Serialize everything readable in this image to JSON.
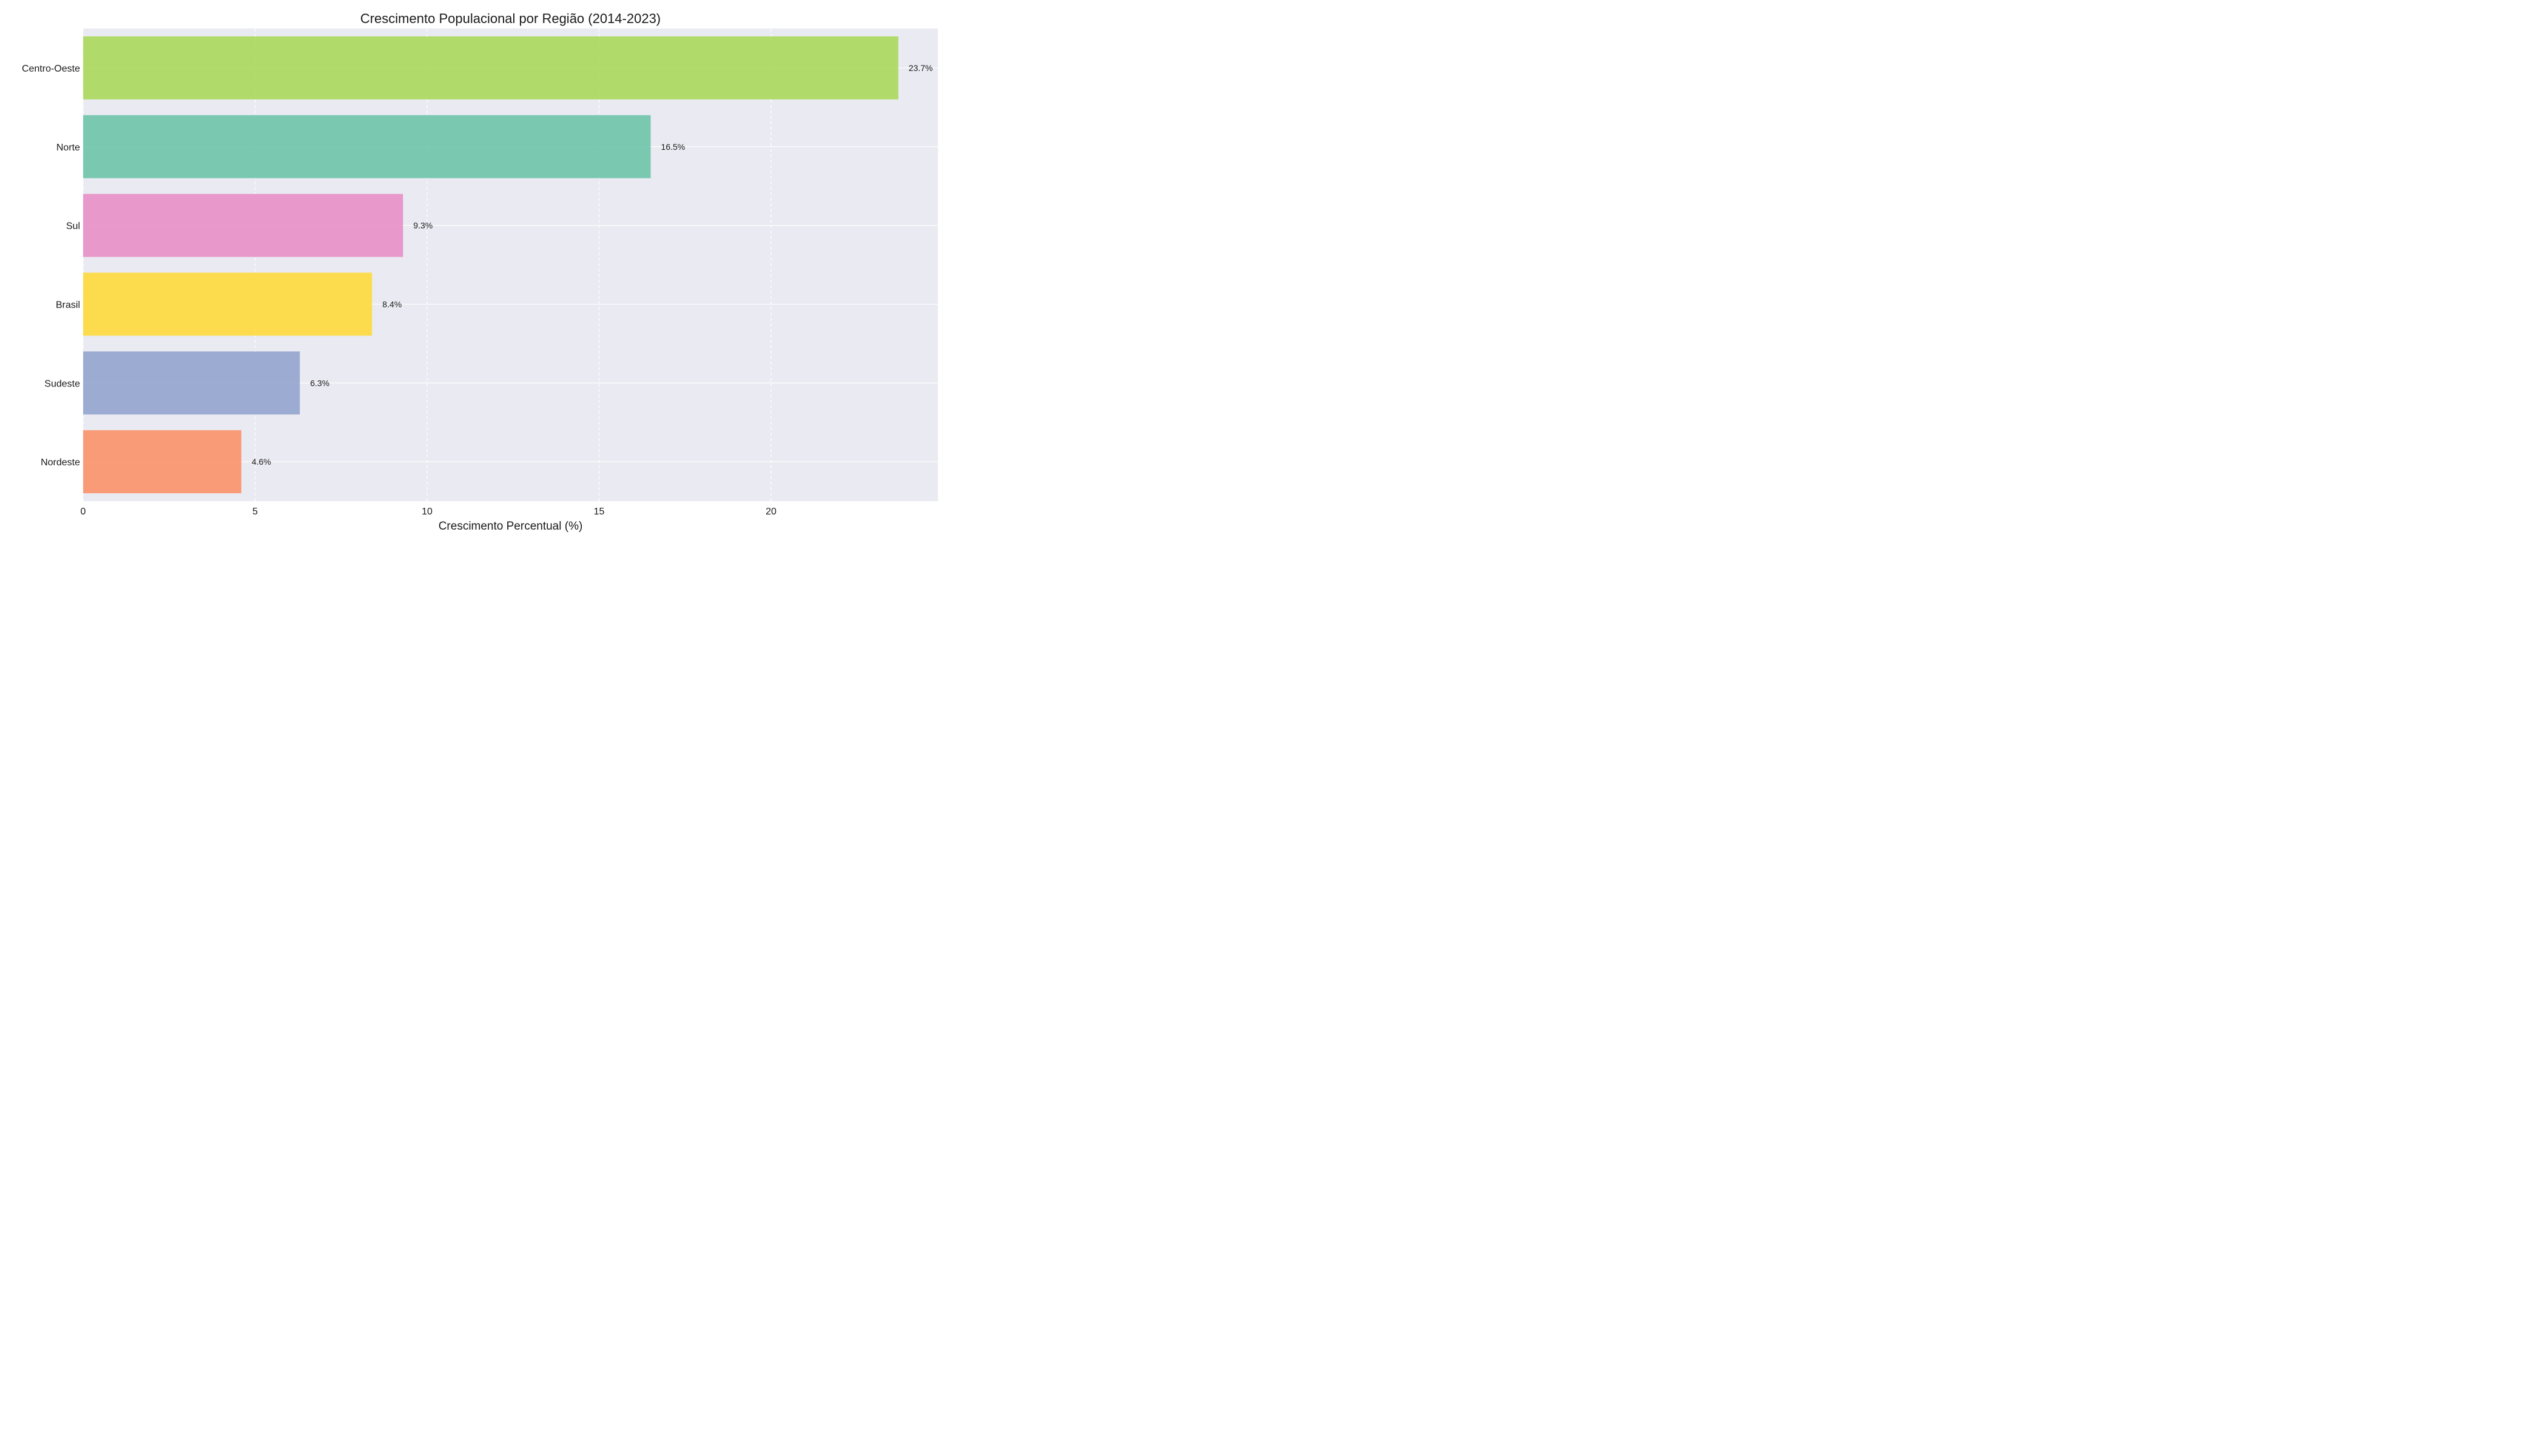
{
  "chart_data": {
    "type": "bar",
    "orientation": "horizontal",
    "title": "Crescimento Populacional por Região (2014-2023)",
    "xlabel": "Crescimento Percentual (%)",
    "ylabel": "",
    "xlim": [
      0,
      24.85
    ],
    "xticks": [
      0,
      5,
      10,
      15,
      20
    ],
    "categories": [
      "Centro-Oeste",
      "Norte",
      "Sul",
      "Brasil",
      "Sudeste",
      "Nordeste"
    ],
    "values": [
      23.7,
      16.5,
      9.3,
      8.4,
      6.3,
      4.6
    ],
    "value_labels": [
      "23.7%",
      "16.5%",
      "9.3%",
      "8.4%",
      "6.3%",
      "4.6%"
    ],
    "colors": [
      "#a6d854",
      "#66c2a5",
      "#e78ac3",
      "#ffd92f",
      "#8da0cb",
      "#fc8d62"
    ],
    "grid": true,
    "background": "#eaeaf2"
  }
}
